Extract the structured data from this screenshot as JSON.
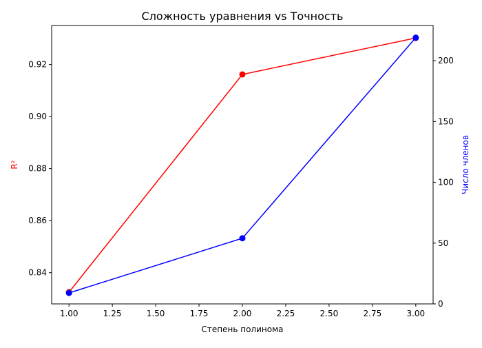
{
  "chart_data": {
    "type": "line",
    "title": "Сложность уравнения vs Точность",
    "xlabel": "Степень полинома",
    "ylabel_left": "R²",
    "ylabel_right": "Число членов",
    "x": [
      1,
      2,
      3
    ],
    "xlim": [
      0.9,
      3.1
    ],
    "xticks": [
      "1.00",
      "1.25",
      "1.50",
      "1.75",
      "2.00",
      "2.25",
      "2.50",
      "2.75",
      "3.00"
    ],
    "ylim_left": [
      0.828,
      0.935
    ],
    "yticks_left": [
      "0.84",
      "0.86",
      "0.88",
      "0.90",
      "0.92"
    ],
    "ylim_right": [
      0,
      229
    ],
    "yticks_right": [
      "0",
      "50",
      "100",
      "150",
      "200"
    ],
    "grid": false,
    "series": [
      {
        "axis": "left",
        "color": "#ff0000",
        "marker": "circle",
        "values": [
          0.8325,
          0.9162,
          0.9302
        ]
      },
      {
        "axis": "right",
        "color": "#0000ff",
        "marker": "circle",
        "values": [
          9,
          54,
          219
        ]
      }
    ],
    "colors": {
      "left_axis_label": "#ff0000",
      "right_axis_label": "#0000ff"
    }
  }
}
